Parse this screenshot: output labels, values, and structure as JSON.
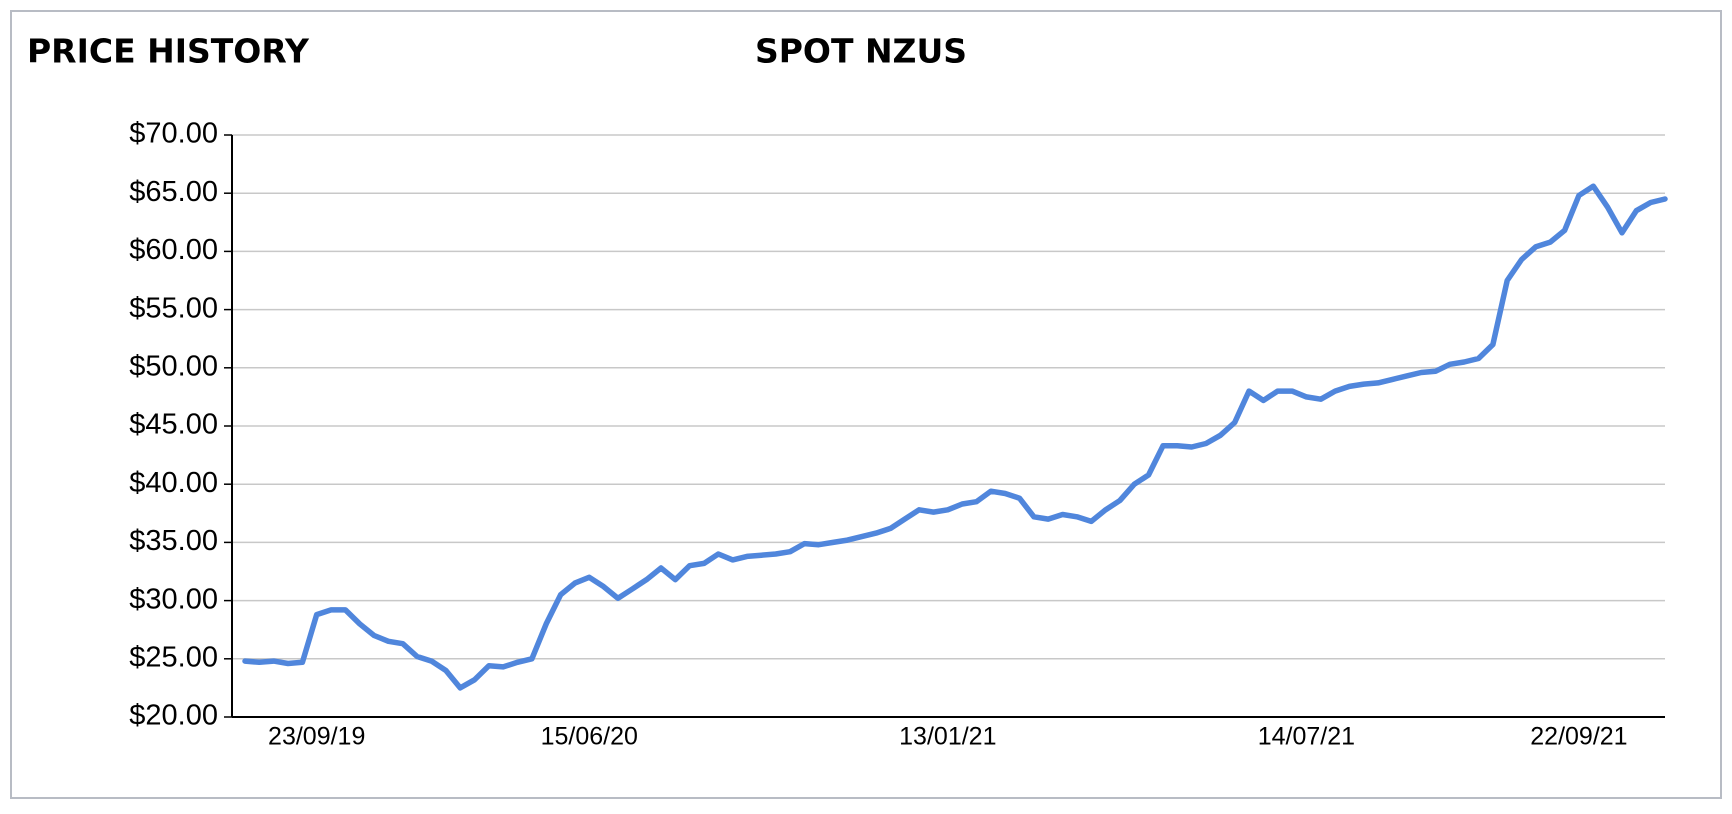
{
  "chart_data": {
    "type": "line",
    "heading": "PRICE HISTORY",
    "title": "SPOT NZUS",
    "categories": [
      null,
      null,
      null,
      null,
      null,
      "23/09/19",
      null,
      null,
      null,
      null,
      null,
      null,
      null,
      null,
      null,
      null,
      null,
      null,
      null,
      null,
      null,
      null,
      null,
      null,
      "15/06/20",
      null,
      null,
      null,
      null,
      null,
      null,
      null,
      null,
      null,
      null,
      null,
      null,
      null,
      null,
      null,
      null,
      null,
      null,
      null,
      null,
      null,
      null,
      null,
      null,
      "13/01/21",
      null,
      null,
      null,
      null,
      null,
      null,
      null,
      null,
      null,
      null,
      null,
      null,
      null,
      null,
      null,
      null,
      null,
      null,
      null,
      null,
      null,
      null,
      null,
      null,
      "14/07/21",
      null,
      null,
      null,
      null,
      null,
      null,
      null,
      null,
      null,
      null,
      null,
      null,
      null,
      null,
      null,
      null,
      null,
      null,
      "22/09/21",
      null,
      null,
      null,
      null,
      null,
      null
    ],
    "series": [
      {
        "name": "SPOT NZUS",
        "color": "#5086dc",
        "values": [
          24.8,
          24.7,
          24.8,
          24.6,
          24.7,
          28.8,
          29.2,
          29.2,
          28.0,
          27.0,
          26.5,
          26.3,
          25.2,
          24.8,
          24.0,
          22.5,
          23.2,
          24.4,
          24.3,
          24.7,
          25.0,
          28.0,
          30.5,
          31.5,
          32.0,
          31.2,
          30.2,
          31.0,
          31.8,
          32.8,
          31.8,
          33.0,
          33.2,
          34.0,
          33.5,
          33.8,
          33.9,
          34.0,
          34.2,
          34.9,
          34.8,
          35.0,
          35.2,
          35.5,
          35.8,
          36.2,
          37.0,
          37.8,
          37.6,
          37.8,
          38.3,
          38.5,
          39.4,
          39.2,
          38.8,
          37.2,
          37.0,
          37.4,
          37.2,
          36.8,
          37.8,
          38.6,
          40.0,
          40.8,
          43.3,
          43.3,
          43.2,
          43.5,
          44.2,
          45.3,
          48.0,
          47.2,
          48.0,
          48.0,
          47.5,
          47.3,
          48.0,
          48.4,
          48.6,
          48.7,
          49.0,
          49.3,
          49.6,
          49.7,
          50.3,
          50.5,
          50.8,
          52.0,
          57.5,
          59.3,
          60.4,
          60.8,
          61.8,
          64.8,
          65.6,
          63.8,
          61.6,
          63.5,
          64.2,
          64.5
        ]
      }
    ],
    "ylim": [
      20,
      70
    ],
    "yticks": [
      {
        "value": 20,
        "label": "$20.00"
      },
      {
        "value": 25,
        "label": "$25.00"
      },
      {
        "value": 30,
        "label": "$30.00"
      },
      {
        "value": 35,
        "label": "$35.00"
      },
      {
        "value": 40,
        "label": "$40.00"
      },
      {
        "value": 45,
        "label": "$45.00"
      },
      {
        "value": 50,
        "label": "$50.00"
      },
      {
        "value": 55,
        "label": "$55.00"
      },
      {
        "value": 60,
        "label": "$60.00"
      },
      {
        "value": 65,
        "label": "$65.00"
      },
      {
        "value": 70,
        "label": "$70.00"
      }
    ],
    "grid": true
  }
}
